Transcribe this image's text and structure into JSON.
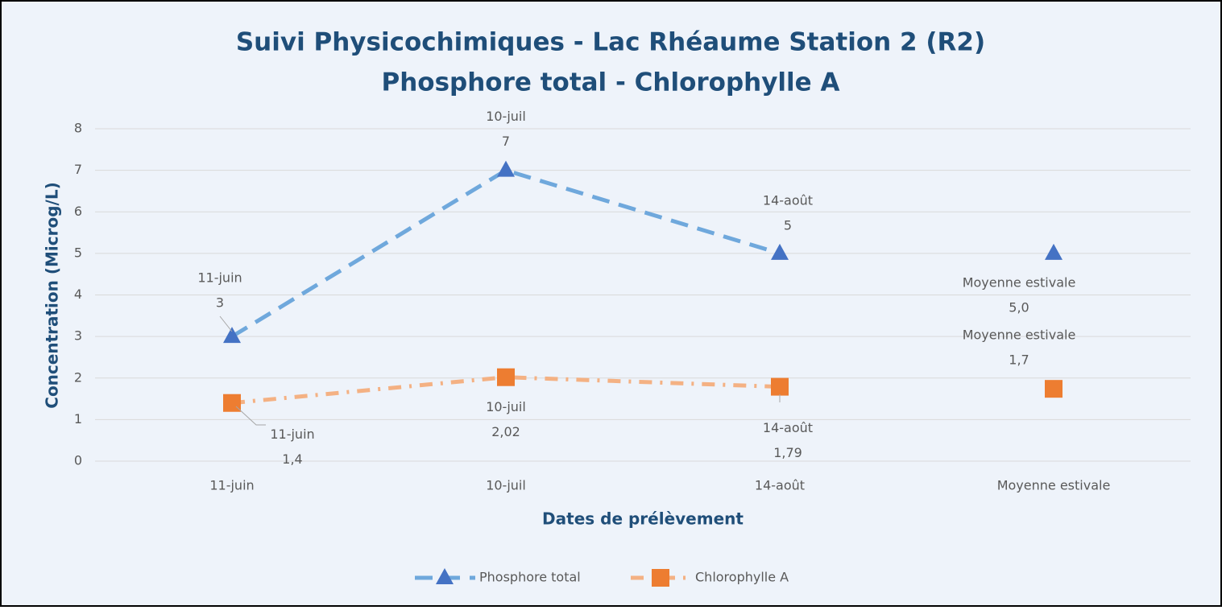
{
  "chart_data": {
    "type": "line",
    "title": "Suivi Physicochimiques - Lac Rhéaume Station 2 (R2)",
    "subtitle": "Phosphore total - Chlorophylle A",
    "x_label": "Dates de prélèvement",
    "y_label": "Concentration (Microg/L)",
    "categories": [
      "11-juin",
      "10-juil",
      "14-août",
      "Moyenne estivale"
    ],
    "series": [
      {
        "name": "Phosphore total",
        "color": "#6fa8dc",
        "marker_color": "#4472c4",
        "marker": "triangle",
        "dash": "22 12",
        "values": [
          3,
          7,
          5,
          5
        ],
        "value_labels": [
          "3",
          "7",
          "5",
          "5,0"
        ]
      },
      {
        "name": "Chlorophylle A",
        "color": "#f4b183",
        "marker_color": "#ed7d31",
        "marker": "square",
        "dash": "16 10 3 10",
        "values": [
          1.4,
          2.02,
          1.79,
          1.74
        ],
        "value_labels": [
          "1,4",
          "2,02",
          "1,79",
          "1,7"
        ]
      }
    ],
    "ylim": [
      0,
      8
    ],
    "yticks": [
      0,
      1,
      2,
      3,
      4,
      5,
      6,
      7,
      8
    ],
    "grid": true,
    "legend": "bottom"
  }
}
